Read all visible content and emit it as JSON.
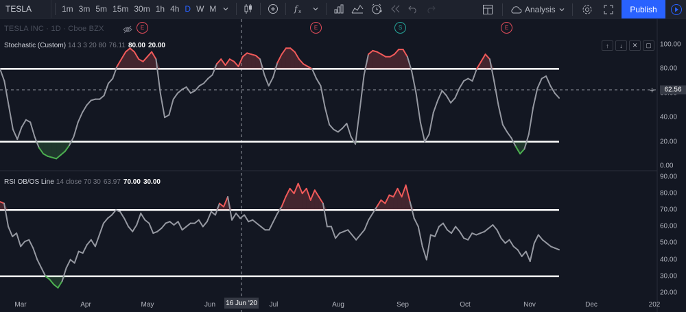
{
  "toolbar": {
    "symbol": "TESLA",
    "intervals": [
      "1m",
      "3m",
      "5m",
      "15m",
      "30m",
      "1h",
      "4h",
      "D",
      "W",
      "M"
    ],
    "active_interval": "D",
    "analysis_label": "Analysis",
    "publish_label": "Publish"
  },
  "chart": {
    "title": "TESLA INC · 1D · Cboe BZX",
    "events": [
      {
        "label": "E",
        "kind": "earnings"
      },
      {
        "label": "E",
        "kind": "earnings"
      },
      {
        "label": "S",
        "kind": "split"
      },
      {
        "label": "E",
        "kind": "earnings"
      }
    ],
    "crosshair_date": "16 Jun '20",
    "crosshair_value": "62.56",
    "x_ticks": [
      "Mar",
      "Apr",
      "May",
      "Jun",
      "Jul",
      "Aug",
      "Sep",
      "Oct",
      "Nov",
      "Dec",
      "202"
    ]
  },
  "stochastic": {
    "name": "Stochastic (Custom)",
    "params": "14 3 3 20 80",
    "value": "76.11",
    "upper": "80.00",
    "lower": "20.00",
    "y_ticks": [
      "100.00",
      "80.00",
      "60.00",
      "40.00",
      "20.00",
      "0.00"
    ]
  },
  "rsi": {
    "name": "RSI OB/OS Line",
    "params": "14 close 70 30",
    "value": "63.97",
    "upper": "70.00",
    "lower": "30.00",
    "y_ticks": [
      "90.00",
      "80.00",
      "70.00",
      "60.00",
      "50.00",
      "40.00",
      "30.00",
      "20.00"
    ]
  },
  "colors": {
    "background": "#131722",
    "line": "#9598a1",
    "overbought": "#f05a5a",
    "oversold": "#4caf50",
    "level_line": "#ffffff",
    "accent": "#2962ff"
  },
  "chart_data": [
    {
      "type": "line",
      "title": "Stochastic (Custom)",
      "ylim": [
        0,
        100
      ],
      "levels": [
        80,
        20
      ],
      "series": [
        {
          "name": "Stochastic (Custom)",
          "values": [
            80,
            70,
            50,
            30,
            22,
            32,
            38,
            36,
            24,
            15,
            10,
            8,
            7,
            6,
            9,
            12,
            17,
            24,
            36,
            44,
            50,
            54,
            55,
            55,
            58,
            68,
            72,
            82,
            88,
            94,
            97,
            94,
            88,
            86,
            90,
            94,
            88,
            60,
            40,
            42,
            55,
            60,
            63,
            65,
            60,
            62,
            66,
            68,
            72,
            75,
            84,
            88,
            83,
            88,
            86,
            82,
            90,
            93,
            92,
            91,
            88,
            75,
            66,
            73,
            85,
            92,
            97,
            97,
            94,
            88,
            84,
            82,
            80,
            72,
            66,
            48,
            34,
            30,
            28,
            31,
            35,
            24,
            18,
            46,
            75,
            92,
            95,
            94,
            92,
            90,
            90,
            92,
            96,
            96,
            90,
            78,
            60,
            36,
            20,
            26,
            44,
            54,
            62,
            58,
            52,
            56,
            64,
            70,
            72,
            70,
            80,
            86,
            92,
            88,
            70,
            50,
            34,
            28,
            23,
            16,
            10,
            14,
            26,
            48,
            64,
            72,
            74,
            66,
            60,
            56
          ]
        }
      ]
    },
    {
      "type": "line",
      "title": "RSI OB/OS Line",
      "ylim": [
        20,
        90
      ],
      "levels": [
        70,
        30
      ],
      "series": [
        {
          "name": "RSI OB/OS Line",
          "values": [
            75,
            74,
            60,
            54,
            56,
            48,
            51,
            52,
            47,
            40,
            35,
            30,
            28,
            25,
            23,
            27,
            35,
            40,
            38,
            45,
            44,
            49,
            52,
            48,
            55,
            62,
            65,
            67,
            70,
            69,
            65,
            60,
            57,
            61,
            68,
            64,
            62,
            56,
            57,
            59,
            62,
            63,
            61,
            63,
            58,
            60,
            62,
            62,
            64,
            60,
            63,
            69,
            67,
            74,
            72,
            78,
            64,
            68,
            65,
            67,
            63,
            64,
            62,
            60,
            58,
            58,
            63,
            68,
            72,
            78,
            83,
            80,
            86,
            80,
            83,
            76,
            82,
            78,
            74,
            60,
            60,
            53,
            56,
            57,
            58,
            55,
            52,
            55,
            58,
            64,
            68,
            72,
            76,
            74,
            79,
            78,
            83,
            78,
            85,
            75,
            65,
            60,
            48,
            40,
            55,
            54,
            60,
            62,
            58,
            56,
            60,
            57,
            53,
            52,
            56,
            55,
            56,
            57,
            59,
            61,
            58,
            53,
            50,
            52,
            48,
            46,
            42,
            45,
            39,
            50,
            55,
            52,
            50,
            48,
            47,
            46
          ]
        }
      ]
    }
  ]
}
